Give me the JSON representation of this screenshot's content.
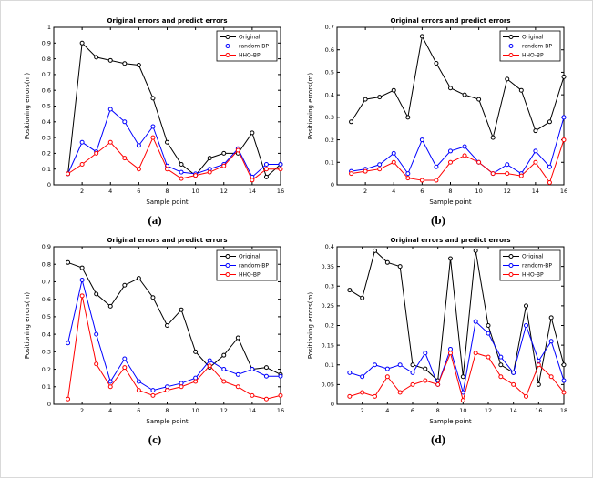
{
  "page": {
    "background": "#ffffff"
  },
  "chart_data": [
    {
      "type": "line",
      "panel_label": "(a)",
      "title": "Original errors and predict errors",
      "xlabel": "Sample point",
      "ylabel": "Positioning errors(m)",
      "xlim": [
        0,
        16
      ],
      "ylim": [
        0,
        1
      ],
      "xticks": [
        2,
        4,
        6,
        8,
        10,
        12,
        14,
        16
      ],
      "yticks": [
        0,
        0.1,
        0.2,
        0.3,
        0.4,
        0.5,
        0.6,
        0.7,
        0.8,
        0.9,
        1
      ],
      "grid": false,
      "legend_position": "top-right",
      "x": [
        1,
        2,
        3,
        4,
        5,
        6,
        7,
        8,
        9,
        10,
        11,
        12,
        13,
        14,
        15,
        16
      ],
      "series": [
        {
          "name": "Original",
          "color": "#000000",
          "values": [
            0.07,
            0.9,
            0.81,
            0.79,
            0.77,
            0.76,
            0.55,
            0.27,
            0.13,
            0.06,
            0.17,
            0.2,
            0.2,
            0.33,
            0.05,
            0.13
          ]
        },
        {
          "name": "random-BP",
          "color": "#0000ff",
          "values": [
            0.07,
            0.27,
            0.21,
            0.48,
            0.4,
            0.25,
            0.37,
            0.12,
            0.08,
            0.07,
            0.1,
            0.13,
            0.23,
            0.05,
            0.13,
            0.13
          ]
        },
        {
          "name": "HHO-BP",
          "color": "#ff0000",
          "values": [
            0.07,
            0.13,
            0.2,
            0.27,
            0.17,
            0.1,
            0.3,
            0.1,
            0.04,
            0.06,
            0.08,
            0.12,
            0.22,
            0.03,
            0.1,
            0.1
          ]
        }
      ]
    },
    {
      "type": "line",
      "panel_label": "(b)",
      "title": "Original errors and predict errors",
      "xlabel": "Sample point",
      "ylabel": "Positioning errors(m)",
      "xlim": [
        0,
        16
      ],
      "ylim": [
        0,
        0.7
      ],
      "xticks": [
        2,
        4,
        6,
        8,
        10,
        12,
        14,
        16
      ],
      "yticks": [
        0,
        0.1,
        0.2,
        0.3,
        0.4,
        0.5,
        0.6,
        0.7
      ],
      "grid": false,
      "legend_position": "top-right",
      "x": [
        1,
        2,
        3,
        4,
        5,
        6,
        7,
        8,
        9,
        10,
        11,
        12,
        13,
        14,
        15,
        16
      ],
      "series": [
        {
          "name": "Original",
          "color": "#000000",
          "values": [
            0.28,
            0.38,
            0.39,
            0.42,
            0.3,
            0.66,
            0.54,
            0.43,
            0.4,
            0.38,
            0.21,
            0.47,
            0.42,
            0.24,
            0.28,
            0.48
          ]
        },
        {
          "name": "random-BP",
          "color": "#0000ff",
          "values": [
            0.06,
            0.07,
            0.09,
            0.14,
            0.05,
            0.2,
            0.08,
            0.15,
            0.17,
            0.1,
            0.05,
            0.09,
            0.05,
            0.15,
            0.08,
            0.3
          ]
        },
        {
          "name": "HHO-BP",
          "color": "#ff0000",
          "values": [
            0.05,
            0.06,
            0.07,
            0.1,
            0.03,
            0.02,
            0.02,
            0.1,
            0.13,
            0.1,
            0.05,
            0.05,
            0.04,
            0.1,
            0.01,
            0.2
          ]
        }
      ]
    },
    {
      "type": "line",
      "panel_label": "(c)",
      "title": "Original errors and predict errors",
      "xlabel": "Sample point",
      "ylabel": "Positioning errors(m)",
      "xlim": [
        0,
        16
      ],
      "ylim": [
        0,
        0.9
      ],
      "xticks": [
        2,
        4,
        6,
        8,
        10,
        12,
        14,
        16
      ],
      "yticks": [
        0,
        0.1,
        0.2,
        0.3,
        0.4,
        0.5,
        0.6,
        0.7,
        0.8,
        0.9
      ],
      "grid": false,
      "legend_position": "top-right",
      "x": [
        1,
        2,
        3,
        4,
        5,
        6,
        7,
        8,
        9,
        10,
        11,
        12,
        13,
        14,
        15,
        16
      ],
      "series": [
        {
          "name": "Original",
          "color": "#000000",
          "values": [
            0.81,
            0.78,
            0.63,
            0.56,
            0.68,
            0.72,
            0.61,
            0.45,
            0.54,
            0.3,
            0.21,
            0.28,
            0.38,
            0.2,
            0.21,
            0.17
          ]
        },
        {
          "name": "random-BP",
          "color": "#0000ff",
          "values": [
            0.35,
            0.71,
            0.4,
            0.13,
            0.26,
            0.13,
            0.08,
            0.1,
            0.12,
            0.15,
            0.25,
            0.2,
            0.17,
            0.2,
            0.16,
            0.16
          ]
        },
        {
          "name": "HHO-BP",
          "color": "#ff0000",
          "values": [
            0.03,
            0.62,
            0.23,
            0.1,
            0.21,
            0.08,
            0.05,
            0.08,
            0.1,
            0.13,
            0.22,
            0.13,
            0.1,
            0.05,
            0.03,
            0.05
          ]
        }
      ]
    },
    {
      "type": "line",
      "panel_label": "(d)",
      "title": "Original errors and predict errors",
      "xlabel": "Sample point",
      "ylabel": "Positioning errors(m)",
      "xlim": [
        0,
        18
      ],
      "ylim": [
        0,
        0.4
      ],
      "xticks": [
        2,
        4,
        6,
        8,
        10,
        12,
        14,
        16,
        18
      ],
      "yticks": [
        0,
        0.05,
        0.1,
        0.15,
        0.2,
        0.25,
        0.3,
        0.35,
        0.4
      ],
      "grid": false,
      "legend_position": "top-right",
      "x": [
        1,
        2,
        3,
        4,
        5,
        6,
        7,
        8,
        9,
        10,
        11,
        12,
        13,
        14,
        15,
        16,
        17,
        18
      ],
      "series": [
        {
          "name": "Original",
          "color": "#000000",
          "values": [
            0.29,
            0.27,
            0.39,
            0.36,
            0.35,
            0.1,
            0.09,
            0.06,
            0.37,
            0.07,
            0.39,
            0.2,
            0.1,
            0.08,
            0.25,
            0.05,
            0.22,
            0.1
          ]
        },
        {
          "name": "random-BP",
          "color": "#0000ff",
          "values": [
            0.08,
            0.07,
            0.1,
            0.09,
            0.1,
            0.08,
            0.13,
            0.05,
            0.14,
            0.03,
            0.21,
            0.18,
            0.12,
            0.08,
            0.2,
            0.11,
            0.16,
            0.06
          ]
        },
        {
          "name": "HHO-BP",
          "color": "#ff0000",
          "values": [
            0.02,
            0.03,
            0.02,
            0.07,
            0.03,
            0.05,
            0.06,
            0.05,
            0.13,
            0.01,
            0.13,
            0.12,
            0.07,
            0.05,
            0.02,
            0.1,
            0.07,
            0.03
          ]
        }
      ]
    }
  ]
}
